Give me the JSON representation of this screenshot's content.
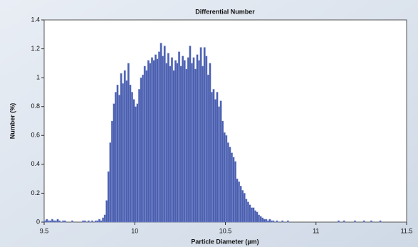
{
  "chart_data": {
    "type": "histogram",
    "title": "Differential Number",
    "x_label": "Particle Diameter (µm)",
    "y_label": "Number (%)",
    "color": "#4b5fae",
    "bins": [
      9.5,
      9.51,
      9.52,
      9.53,
      9.54,
      9.55,
      9.56,
      9.57,
      9.58,
      9.59,
      9.6,
      9.61,
      9.62,
      9.63,
      9.64,
      9.65,
      9.66,
      9.67,
      9.68,
      9.69,
      9.7,
      9.71,
      9.72,
      9.73,
      9.74,
      9.75,
      9.76,
      9.77,
      9.78,
      9.79,
      9.8,
      9.81,
      9.82,
      9.83,
      9.84,
      9.85,
      9.86,
      9.87,
      9.88,
      9.89,
      9.9,
      9.91,
      9.92,
      9.93,
      9.94,
      9.95,
      9.96,
      9.97,
      9.98,
      9.99,
      10,
      10.01,
      10.02,
      10.03,
      10.04,
      10.05,
      10.06,
      10.07,
      10.08,
      10.09,
      10.1,
      10.11,
      10.12,
      10.13,
      10.14,
      10.15,
      10.16,
      10.17,
      10.18,
      10.19,
      10.2,
      10.21,
      10.22,
      10.23,
      10.24,
      10.25,
      10.26,
      10.27,
      10.28,
      10.29,
      10.3,
      10.31,
      10.32,
      10.33,
      10.34,
      10.35,
      10.36,
      10.37,
      10.38,
      10.39,
      10.4,
      10.41,
      10.42,
      10.43,
      10.44,
      10.45,
      10.46,
      10.47,
      10.48,
      10.49,
      10.5,
      10.51,
      10.52,
      10.53,
      10.54,
      10.55,
      10.56,
      10.57,
      10.58,
      10.59,
      10.6,
      10.61,
      10.62,
      10.63,
      10.64,
      10.65,
      10.66,
      10.67,
      10.68,
      10.69,
      10.7,
      10.71,
      10.72,
      10.73,
      10.74,
      10.75,
      10.76,
      10.77,
      10.78,
      10.79,
      10.8,
      10.81,
      10.82,
      10.83,
      10.84,
      10.85,
      10.86,
      10.87,
      10.88,
      10.89,
      10.9,
      10.91,
      10.92,
      10.93,
      10.94,
      10.95,
      10.96,
      10.97,
      10.98,
      10.99,
      11,
      11.01,
      11.02,
      11.03,
      11.04,
      11.05,
      11.06,
      11.07,
      11.08,
      11.09,
      11.1,
      11.11,
      11.12,
      11.13,
      11.14,
      11.15,
      11.16,
      11.17,
      11.18,
      11.19,
      11.2,
      11.21,
      11.22,
      11.23,
      11.24,
      11.25,
      11.26,
      11.27,
      11.28,
      11.29,
      11.3,
      11.31,
      11.32,
      11.33,
      11.34,
      11.35,
      11.36,
      11.37,
      11.38,
      11.39,
      11.4,
      11.41,
      11.42,
      11.43,
      11.44,
      11.45,
      11.46,
      11.47,
      11.48,
      11.49,
      11.5
    ],
    "values": [
      0.01,
      0.02,
      0.01,
      0.01,
      0.02,
      0.01,
      0.01,
      0.02,
      0.01,
      0,
      0.01,
      0.01,
      0,
      0,
      0,
      0.01,
      0,
      0,
      0,
      0,
      0,
      0.01,
      0.01,
      0,
      0.01,
      0,
      0.01,
      0,
      0.01,
      0.01,
      0.02,
      0.01,
      0.03,
      0.05,
      0.15,
      0.35,
      0.55,
      0.7,
      0.82,
      0.9,
      0.95,
      0.88,
      1.03,
      0.96,
      1.05,
      0.98,
      1.1,
      0.95,
      0.9,
      0.85,
      0.8,
      0.82,
      0.92,
      1,
      1.02,
      1.08,
      1.05,
      1.12,
      1.1,
      1.14,
      1.12,
      1.16,
      1.13,
      1.18,
      1.24,
      1.15,
      1.22,
      1.1,
      1.17,
      1.08,
      1.14,
      1.05,
      1.12,
      1.1,
      1.18,
      1.08,
      1.15,
      1.12,
      1.06,
      1.14,
      1.22,
      1.1,
      1.14,
      1.06,
      1.16,
      1.12,
      1.21,
      1.08,
      1.21,
      1.15,
      1.02,
      1.1,
      0.9,
      0.92,
      0.85,
      0.9,
      0.8,
      0.84,
      0.7,
      0.62,
      0.6,
      0.55,
      0.52,
      0.48,
      0.45,
      0.42,
      0.3,
      0.28,
      0.25,
      0.22,
      0.2,
      0.16,
      0.14,
      0.12,
      0.1,
      0.1,
      0.08,
      0.07,
      0.05,
      0.04,
      0.03,
      0.02,
      0.02,
      0.01,
      0.02,
      0.01,
      0.01,
      0,
      0.01,
      0,
      0,
      0.01,
      0,
      0,
      0.01,
      0,
      0,
      0,
      0,
      0,
      0,
      0,
      0,
      0,
      0,
      0,
      0,
      0,
      0,
      0,
      0,
      0,
      0,
      0,
      0,
      0,
      0,
      0,
      0,
      0,
      0,
      0,
      0.01,
      0,
      0,
      0.01,
      0,
      0,
      0,
      0,
      0,
      0.01,
      0,
      0,
      0,
      0,
      0.01,
      0,
      0,
      0,
      0.01,
      0,
      0,
      0,
      0,
      0.01,
      0,
      0,
      0,
      0,
      0,
      0,
      0,
      0,
      0,
      0,
      0,
      0,
      0,
      0
    ],
    "xlim": [
      9.5,
      11.5
    ],
    "xticks": [
      9.5,
      10,
      10.5,
      11,
      11.5
    ],
    "ylim": [
      0,
      1.4
    ],
    "yticks": [
      0,
      0.2,
      0.4,
      0.6,
      0.8,
      1,
      1.2,
      1.4
    ]
  }
}
